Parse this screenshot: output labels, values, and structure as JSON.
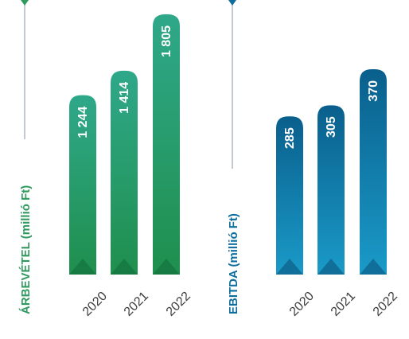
{
  "colors": {
    "revenue_title": "#2e9a5e",
    "ebitda_title": "#0f6e9c",
    "axis_line": "#9ca3af",
    "year_text": "#3b3b3b"
  },
  "chart_data": [
    {
      "type": "bar",
      "ylabel": "ÁRBEVÉTEL (millió Ft)",
      "categories": [
        "2020",
        "2021",
        "2022"
      ],
      "values": [
        1244,
        1414,
        1805
      ],
      "value_labels": [
        "1 244",
        "1 414",
        "1 805"
      ],
      "color_top": "#2fa88a",
      "color_bottom": "#1f8f4d"
    },
    {
      "type": "bar",
      "ylabel": "EBITDA (millió Ft)",
      "categories": [
        "2020",
        "2021",
        "2022"
      ],
      "values": [
        285,
        305,
        370
      ],
      "value_labels": [
        "285",
        "305",
        "370"
      ],
      "color_top": "#0a5f8c",
      "color_bottom": "#1a9ac8"
    }
  ]
}
